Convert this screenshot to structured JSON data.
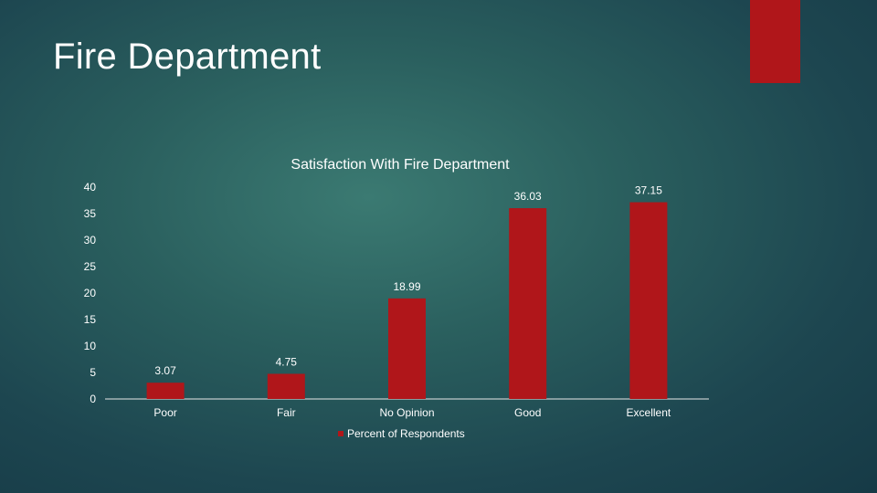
{
  "slide": {
    "title": "Fire Department",
    "accent_color": "#b0161a"
  },
  "chart_data": {
    "type": "bar",
    "title": "Satisfaction With Fire Department",
    "categories": [
      "Poor",
      "Fair",
      "No Opinion",
      "Good",
      "Excellent"
    ],
    "series": [
      {
        "name": "Percent of Respondents",
        "values": [
          3.07,
          4.75,
          18.99,
          36.03,
          37.15
        ],
        "color": "#b0161a"
      }
    ],
    "data_labels": [
      "3.07",
      "4.75",
      "18.99",
      "36.03",
      "37.15"
    ],
    "y_ticks": [
      "0",
      "5",
      "10",
      "15",
      "20",
      "25",
      "30",
      "35",
      "40"
    ],
    "ylim": [
      0,
      40
    ],
    "xlabel": "",
    "ylabel": "",
    "grid": false,
    "legend_position": "bottom"
  }
}
